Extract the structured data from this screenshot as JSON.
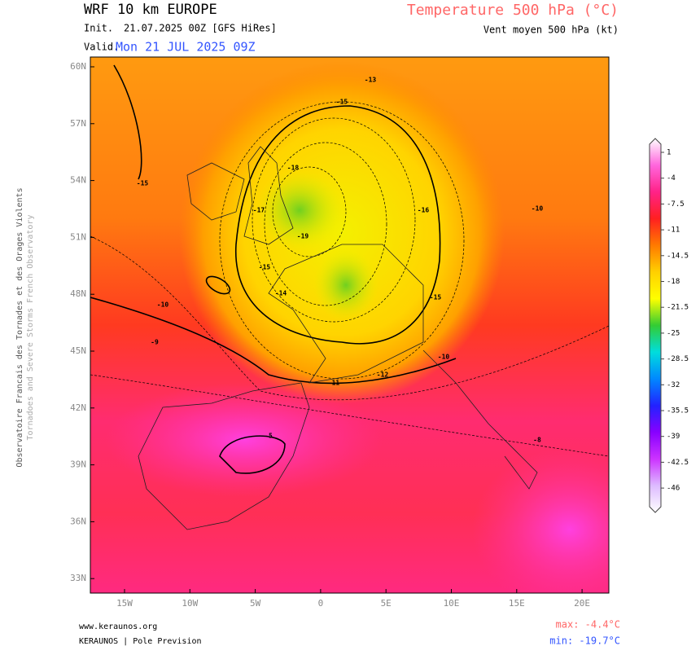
{
  "header": {
    "title": "WRF 10 km EUROPE",
    "init_label": "Init.",
    "init": "21.07.2025 00Z [GFS HiRes]",
    "valid_label": "Valid.",
    "valid": "Mon 21 JUL 2025 09Z",
    "parameter": "Temperature 500 hPa (°C)",
    "wind": "Vent moyen 500 hPa (kt)"
  },
  "side_text": [
    "Observatoire Francais des Tornades et des Orages Violents",
    "Tornadoes and Severe Storms French Observatory"
  ],
  "map": {
    "lat_labels": [
      "60N",
      "57N",
      "54N",
      "51N",
      "48N",
      "45N",
      "42N",
      "39N",
      "36N",
      "33N"
    ],
    "lon_labels": [
      "15W",
      "10W",
      "5W",
      "0",
      "5E",
      "10E",
      "15E",
      "20E"
    ],
    "contour_labels": [
      "-15",
      "-15",
      "-15",
      "-15",
      "-10",
      "-10",
      "-10",
      "-18",
      "-19",
      "-16",
      "-14",
      "-13",
      "-12",
      "-11",
      "-5",
      "-17",
      "-8",
      "-9"
    ]
  },
  "colorbar": {
    "labels": [
      1,
      -4,
      -7.5,
      -11,
      -14.5,
      -18,
      -21.5,
      -25,
      -28.5,
      -32,
      -35.5,
      -39,
      -42.5,
      -46
    ],
    "colors": [
      "#ffffff",
      "#ff66dd",
      "#ff2288",
      "#ff2020",
      "#ff7a00",
      "#ffd000",
      "#ffff00",
      "#33cc33",
      "#00dddd",
      "#0088ff",
      "#2222ff",
      "#8800ff",
      "#cc33ff",
      "#ddbbff",
      "#ffffff"
    ]
  },
  "footer": {
    "site": "www.keraunos.org",
    "company": "KERAUNOS | Pole Prevision",
    "max": "max: -4.4°C",
    "min": "min: -19.7°C"
  }
}
